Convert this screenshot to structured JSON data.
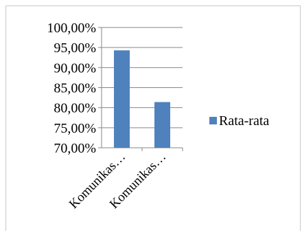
{
  "chart_data": {
    "type": "bar",
    "categories": [
      "Komunikas…",
      "Komunikas…"
    ],
    "series": [
      {
        "name": "Rata-rata",
        "values": [
          94.3,
          81.4
        ]
      }
    ],
    "ylim": [
      70,
      100
    ],
    "yticks": [
      "100,00%",
      "95,00%",
      "90,00%",
      "85,00%",
      "80,00%",
      "75,00%",
      "70,00%"
    ],
    "grid": true,
    "legend_position": "right",
    "bar_color": "#4f81bd",
    "grid_color": "#868686"
  }
}
